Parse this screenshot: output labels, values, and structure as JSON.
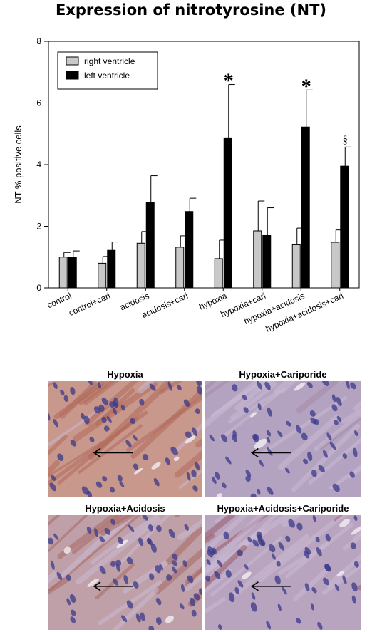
{
  "chart_data": {
    "type": "bar",
    "title": "Expression of nitrotyrosine (NT)",
    "xlabel": "",
    "ylabel": "NT % positive cells",
    "ylim": [
      0,
      8
    ],
    "yticks": [
      0,
      2,
      4,
      6,
      8
    ],
    "grid": false,
    "legend_position": "top-left",
    "categories": [
      "control",
      "control+cari",
      "acidosis",
      "acidosis+cari",
      "hypoxia",
      "hypoxia+cari",
      "hypoxia+acidosis",
      "hypoxia+acidosis+cari"
    ],
    "series": [
      {
        "name": "right ventricle",
        "color": "#c8c8c8",
        "values": [
          1.0,
          0.8,
          1.45,
          1.32,
          0.95,
          1.85,
          1.4,
          1.48
        ],
        "errors": [
          0.15,
          0.22,
          0.38,
          0.37,
          0.6,
          0.97,
          0.54,
          0.4
        ]
      },
      {
        "name": "left ventricle",
        "color": "#000000",
        "values": [
          1.0,
          1.22,
          2.78,
          2.48,
          4.87,
          1.7,
          5.22,
          3.95
        ],
        "errors": [
          0.2,
          0.27,
          0.86,
          0.43,
          1.73,
          0.9,
          1.2,
          0.62
        ]
      }
    ],
    "annotations": [
      {
        "category": "hypoxia",
        "text": "*"
      },
      {
        "category": "hypoxia+acidosis",
        "text": "*"
      },
      {
        "category": "hypoxia+acidosis+cari",
        "text": "§"
      }
    ]
  },
  "panels": [
    {
      "label": "Hypoxia",
      "bg": "#c8988c",
      "stain": "#b06a5a",
      "stain_amount": 0.75
    },
    {
      "label": "Hypoxia+Cariporide",
      "bg": "#b3a3c0",
      "stain": "#a58aa6",
      "stain_amount": 0.15
    },
    {
      "label": "Hypoxia+Acidosis",
      "bg": "#bfa0a8",
      "stain": "#a86a62",
      "stain_amount": 0.5
    },
    {
      "label": "Hypoxia+Acidosis+Cariporide",
      "bg": "#b9a4c0",
      "stain": "#9a5b64",
      "stain_amount": 0.3
    }
  ]
}
